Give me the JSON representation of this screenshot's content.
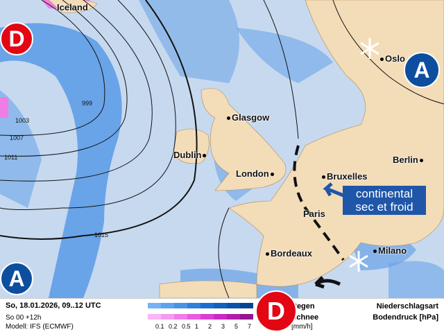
{
  "map": {
    "colors": {
      "ocean": "#c7d9ef",
      "land": "#f3dcb8",
      "rain": "#3f86dc",
      "snow": "#f07ce6",
      "low": "#e30613",
      "high": "#0d4e9e"
    },
    "cities": [
      {
        "name": "Iceland"
      },
      {
        "name": "Glasgow"
      },
      {
        "name": "Dublin"
      },
      {
        "name": "London"
      },
      {
        "name": "Bruxelles"
      },
      {
        "name": "Paris"
      },
      {
        "name": "Berlin"
      },
      {
        "name": "Oslo"
      },
      {
        "name": "Milano"
      },
      {
        "name": "Bordeaux"
      }
    ],
    "isobars": [
      "999",
      "1003",
      "1007",
      "1011",
      "1015"
    ],
    "pressure_centers": [
      {
        "label": "D"
      },
      {
        "label": "A"
      },
      {
        "label": "A"
      },
      {
        "label": "D"
      }
    ],
    "annotation": "continental sec et froid"
  },
  "legend": {
    "datetime": "So, 18.01.2026, 09..12 UTC",
    "run": "So 00 +12h",
    "model": "Modell: IFS (ECMWF)",
    "rain_label": "Regen",
    "snow_label": "Schnee",
    "unit": "[mm/h]",
    "scale": [
      "0.1",
      "0.2",
      "0.5",
      "1",
      "2",
      "3",
      "5",
      "7"
    ],
    "rain_colors": [
      "#74b4f4",
      "#5ea2ee",
      "#4a92e6",
      "#2f7fdc",
      "#1a6dd0",
      "#1160bd",
      "#0b52a8",
      "#064493"
    ],
    "snow_colors": [
      "#f9b7f3",
      "#f59cef",
      "#f07ce6",
      "#e85ce0",
      "#d93fd3",
      "#c82ac2",
      "#b01eaa",
      "#951692"
    ],
    "right_1": "Niederschlagsart",
    "right_2": "Bodendruck [hPa]"
  }
}
